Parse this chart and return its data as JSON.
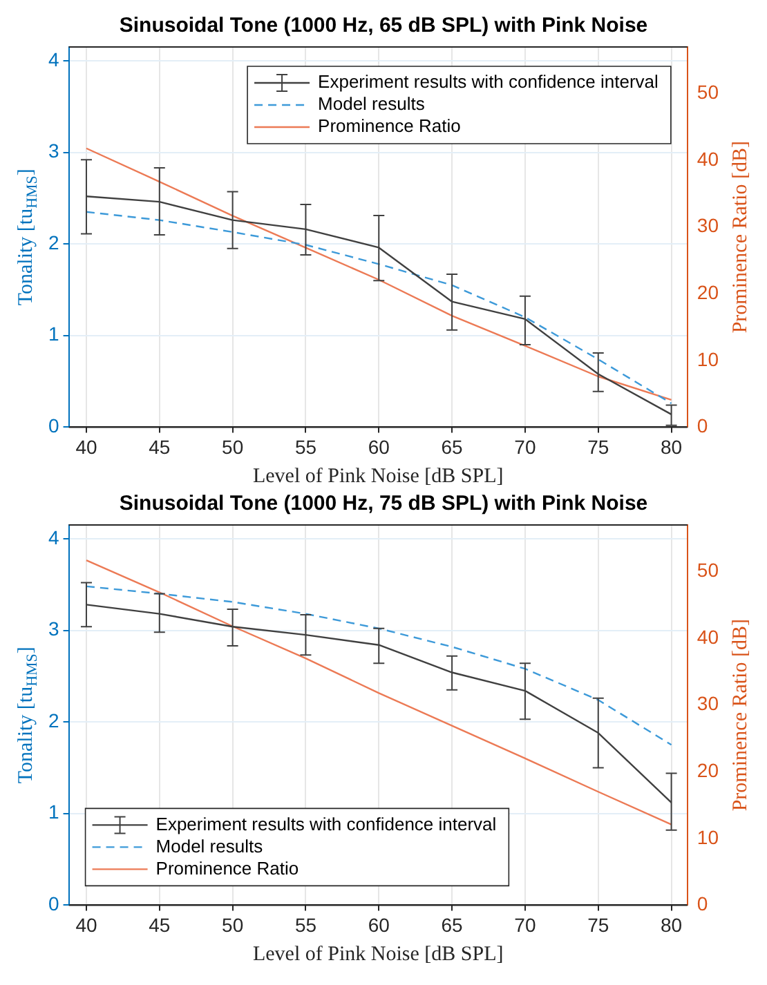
{
  "chart_data": [
    {
      "type": "line",
      "title": "Sinusoidal Tone (1000 Hz, 65 dB SPL) with Pink Noise",
      "xlabel": "Level of Pink Noise [dB SPL]",
      "ylabel": "Tonality [tu$_{HMS}$]",
      "y2label": "Prominence Ratio [dB]",
      "x": [
        40,
        45,
        50,
        55,
        60,
        65,
        70,
        75,
        80
      ],
      "series": [
        {
          "name": "Experiment results with confidence interval",
          "color": "#404040",
          "values": [
            2.52,
            2.46,
            2.26,
            2.16,
            1.96,
            1.37,
            1.18,
            0.58,
            0.14
          ],
          "errors": [
            [
              2.11,
              2.92
            ],
            [
              2.1,
              2.83
            ],
            [
              1.95,
              2.57
            ],
            [
              1.88,
              2.43
            ],
            [
              1.6,
              2.31
            ],
            [
              1.06,
              1.67
            ],
            [
              0.9,
              1.43
            ],
            [
              0.39,
              0.81
            ],
            [
              0.02,
              0.24
            ]
          ]
        },
        {
          "name": "Model results",
          "color": "#3d9ad9",
          "line_style": "dashed",
          "values": [
            2.35,
            2.26,
            2.13,
            1.99,
            1.78,
            1.55,
            1.2,
            0.74,
            0.26
          ]
        },
        {
          "name": "Prominence Ratio",
          "color": "#ec7a55",
          "axis": "y2",
          "values": [
            41.8,
            36.8,
            31.7,
            26.9,
            22.1,
            16.7,
            12.2,
            7.6,
            4.1
          ]
        }
      ],
      "xlim": [
        38.8,
        81.1
      ],
      "xticks": [
        40,
        45,
        50,
        55,
        60,
        65,
        70,
        75,
        80
      ],
      "ylim": [
        0,
        4.15
      ],
      "yticks": [
        0,
        1,
        2,
        3,
        4
      ],
      "y2lim": [
        0,
        57
      ],
      "y2ticks": [
        0,
        10,
        20,
        30,
        40,
        50
      ],
      "grid": true,
      "legend": "top right",
      "marker": "none"
    },
    {
      "type": "line",
      "title": "Sinusoidal Tone (1000 Hz, 75 dB SPL) with Pink Noise",
      "xlabel": "Level of Pink Noise [dB SPL]",
      "ylabel": "Tonality [tu$_{HMS}$]",
      "y2label": "Prominence Ratio [dB]",
      "x": [
        40,
        45,
        50,
        55,
        60,
        65,
        70,
        75,
        80
      ],
      "series": [
        {
          "name": "Experiment results with confidence interval",
          "color": "#404040",
          "values": [
            3.28,
            3.18,
            3.04,
            2.95,
            2.84,
            2.54,
            2.34,
            1.88,
            1.12
          ],
          "errors": [
            [
              3.04,
              3.52
            ],
            [
              2.98,
              3.4
            ],
            [
              2.83,
              3.23
            ],
            [
              2.73,
              3.17
            ],
            [
              2.64,
              3.02
            ],
            [
              2.35,
              2.72
            ],
            [
              2.03,
              2.64
            ],
            [
              1.5,
              2.26
            ],
            [
              0.82,
              1.44
            ]
          ]
        },
        {
          "name": "Model results",
          "color": "#3d9ad9",
          "line_style": "dashed",
          "values": [
            3.48,
            3.4,
            3.31,
            3.18,
            3.02,
            2.82,
            2.58,
            2.24,
            1.75
          ]
        },
        {
          "name": "Prominence Ratio",
          "color": "#ec7a55",
          "axis": "y2",
          "values": [
            51.7,
            46.9,
            41.8,
            37.0,
            31.8,
            26.9,
            22.0,
            17.0,
            12.1
          ]
        }
      ],
      "xlim": [
        38.8,
        81.1
      ],
      "xticks": [
        40,
        45,
        50,
        55,
        60,
        65,
        70,
        75,
        80
      ],
      "ylim": [
        0,
        4.15
      ],
      "yticks": [
        0,
        1,
        2,
        3,
        4
      ],
      "y2lim": [
        0,
        57
      ],
      "y2ticks": [
        0,
        10,
        20,
        30,
        40,
        50
      ],
      "grid": true,
      "legend": "bottom left",
      "marker": "none"
    }
  ]
}
